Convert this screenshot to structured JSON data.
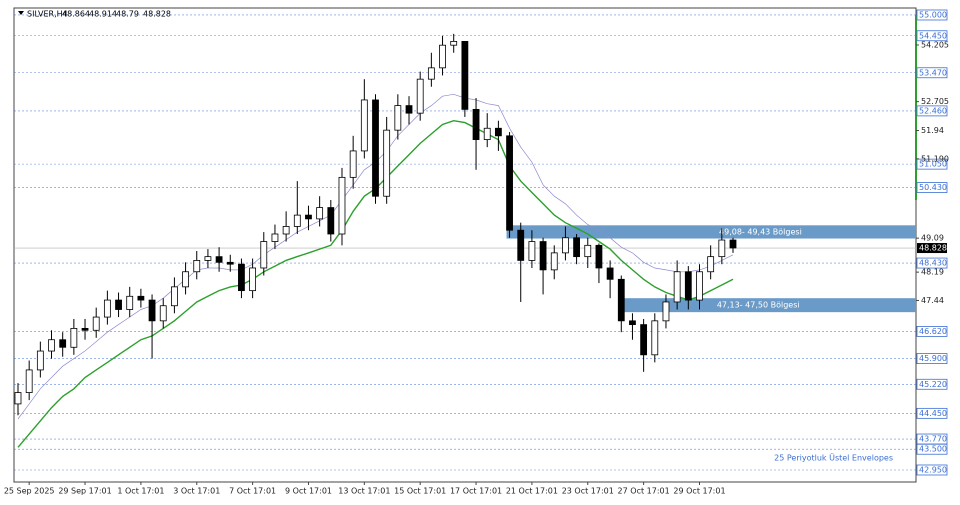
{
  "chart_data": {
    "type": "candlestick",
    "header": {
      "symbol": "SILVER,H4",
      "ohlc": [
        48.864,
        48.914,
        48.79,
        48.828
      ]
    },
    "annotation": "25 Periyotluk Üstel Envelopes",
    "last_price": 48.828,
    "categories": [
      null,
      "25 Sep 2025",
      null,
      null,
      null,
      null,
      "29 Sep 17:01",
      null,
      null,
      null,
      null,
      "1 Oct 17:01",
      null,
      null,
      null,
      null,
      "3 Oct 17:01",
      null,
      null,
      null,
      null,
      "7 Oct 17:01",
      null,
      null,
      null,
      null,
      "9 Oct 17:01",
      null,
      null,
      null,
      null,
      "13 Oct 17:01",
      null,
      null,
      null,
      null,
      "15 Oct 17:01",
      null,
      null,
      null,
      null,
      "17 Oct 17:01",
      null,
      null,
      null,
      null,
      "21 Oct 17:01",
      null,
      null,
      null,
      null,
      "23 Oct 17:01",
      null,
      null,
      null,
      null,
      "27 Oct 17:01",
      null,
      null,
      null,
      null,
      "29 Oct 17:01",
      null,
      null,
      null
    ],
    "open": [
      44.7,
      45.0,
      45.6,
      46.1,
      46.4,
      46.2,
      46.7,
      46.65,
      47.0,
      47.45,
      47.2,
      47.55,
      47.45,
      46.9,
      47.3,
      47.8,
      48.2,
      48.5,
      48.6,
      48.45,
      48.4,
      47.7,
      48.3,
      49.0,
      49.2,
      49.4,
      49.7,
      49.6,
      49.9,
      49.2,
      50.7,
      51.4,
      52.75,
      50.2,
      51.95,
      52.6,
      52.4,
      53.3,
      53.6,
      54.2,
      54.3,
      52.5,
      51.7,
      52.0,
      51.8,
      49.3,
      48.5,
      49.0,
      48.25,
      48.7,
      49.1,
      48.6,
      48.9,
      48.3,
      48.0,
      46.9,
      46.8,
      46.0,
      46.9,
      47.4,
      48.2,
      47.45,
      48.2,
      48.6,
      49.04
    ],
    "high": [
      45.25,
      45.85,
      46.35,
      46.65,
      46.6,
      46.95,
      46.95,
      47.25,
      47.7,
      47.65,
      47.8,
      47.75,
      47.6,
      47.5,
      48.05,
      48.45,
      48.75,
      48.8,
      48.85,
      48.65,
      48.55,
      48.55,
      49.25,
      49.45,
      49.8,
      50.6,
      49.95,
      50.2,
      50.1,
      50.95,
      51.8,
      53.3,
      52.9,
      52.3,
      52.9,
      52.85,
      53.5,
      54.0,
      54.45,
      54.5,
      54.3,
      52.8,
      52.4,
      52.2,
      51.9,
      49.5,
      49.3,
      49.1,
      48.9,
      49.4,
      49.2,
      49.1,
      48.95,
      48.5,
      48.1,
      47.1,
      46.95,
      47.1,
      47.6,
      48.5,
      48.35,
      48.4,
      48.9,
      49.35,
      49.1
    ],
    "low": [
      44.4,
      44.8,
      45.4,
      45.9,
      45.95,
      46.0,
      46.4,
      46.45,
      46.8,
      47.0,
      47.0,
      47.25,
      45.9,
      46.7,
      47.1,
      47.6,
      48.0,
      48.3,
      48.2,
      48.2,
      47.5,
      47.5,
      48.1,
      48.8,
      49.0,
      49.2,
      49.3,
      49.4,
      49.0,
      48.9,
      50.4,
      51.2,
      50.0,
      50.0,
      51.7,
      52.1,
      52.2,
      53.1,
      53.4,
      54.0,
      52.3,
      50.9,
      51.5,
      51.4,
      49.1,
      47.4,
      48.3,
      47.6,
      48.0,
      48.5,
      48.4,
      48.3,
      47.9,
      47.5,
      46.6,
      46.4,
      45.55,
      45.8,
      46.7,
      47.2,
      47.2,
      47.2,
      48.0,
      48.4,
      48.7
    ],
    "close": [
      45.0,
      45.6,
      46.1,
      46.4,
      46.2,
      46.7,
      46.65,
      47.0,
      47.45,
      47.2,
      47.55,
      47.45,
      46.9,
      47.3,
      47.8,
      48.2,
      48.5,
      48.6,
      48.45,
      48.4,
      47.7,
      48.3,
      49.0,
      49.2,
      49.4,
      49.7,
      49.6,
      49.9,
      49.2,
      50.7,
      51.4,
      52.75,
      50.2,
      51.95,
      52.6,
      52.4,
      53.3,
      53.6,
      54.2,
      54.3,
      52.5,
      51.7,
      52.0,
      51.8,
      49.3,
      48.5,
      49.0,
      48.25,
      48.7,
      49.1,
      48.6,
      48.9,
      48.3,
      48.0,
      46.9,
      46.8,
      46.0,
      46.9,
      47.4,
      48.2,
      47.45,
      48.2,
      48.6,
      49.04,
      48.83
    ],
    "lines": [
      {
        "color": "#2ca02c",
        "values": [
          43.55,
          43.9,
          44.25,
          44.6,
          44.9,
          45.1,
          45.4,
          45.6,
          45.8,
          46.0,
          46.2,
          46.4,
          46.5,
          46.7,
          46.9,
          47.15,
          47.4,
          47.55,
          47.7,
          47.8,
          47.85,
          48.0,
          48.2,
          48.35,
          48.5,
          48.6,
          48.7,
          48.8,
          48.9,
          49.3,
          49.8,
          50.2,
          50.4,
          50.7,
          51.0,
          51.3,
          51.6,
          51.85,
          52.1,
          52.2,
          52.15,
          52.0,
          51.85,
          51.7,
          51.0,
          50.6,
          50.3,
          50.0,
          49.7,
          49.5,
          49.35,
          49.2,
          49.0,
          48.8,
          48.5,
          48.25,
          48.0,
          47.8,
          47.65,
          47.55,
          47.45,
          47.55,
          47.7,
          47.85,
          48.0
        ]
      },
      {
        "color": "#8c8cd0",
        "values": [
          44.3,
          44.7,
          45.1,
          45.4,
          45.7,
          45.9,
          46.1,
          46.35,
          46.6,
          46.8,
          47.0,
          47.2,
          47.3,
          47.5,
          47.75,
          48.0,
          48.25,
          48.3,
          48.3,
          48.25,
          48.25,
          48.4,
          48.65,
          48.85,
          49.05,
          49.25,
          49.4,
          49.55,
          49.7,
          50.1,
          50.5,
          50.9,
          51.1,
          51.4,
          51.8,
          52.1,
          52.4,
          52.6,
          52.85,
          52.9,
          52.8,
          52.75,
          52.65,
          52.6,
          52.0,
          51.5,
          51.1,
          50.5,
          50.2,
          50.0,
          49.7,
          49.45,
          49.3,
          49.1,
          48.85,
          48.7,
          48.45,
          48.3,
          48.25,
          48.2,
          48.2,
          48.25,
          48.35,
          48.5,
          48.65
        ]
      }
    ],
    "zones": [
      {
        "label": "49,08- 49,43 Bölgesi",
        "low": 49.08,
        "high": 49.43,
        "color": "#6a9bc8"
      },
      {
        "label": "47,13- 47,50 Bölgesi",
        "low": 47.13,
        "high": 47.5,
        "color": "#6a9bc8"
      }
    ],
    "ylim": [
      42.632,
      55.185
    ],
    "yticks": [
      54.205,
      52.705,
      51.94,
      {
        "value": 51.19,
        "label": "51.190"
      },
      49.09,
      48.19,
      47.44
    ],
    "levels": [
      {
        "value": 55,
        "label": "55.000"
      },
      {
        "value": 54.45,
        "label": "54.450"
      },
      {
        "value": 53.47,
        "label": "53.470"
      },
      {
        "value": 52.46,
        "label": "52.460"
      },
      {
        "value": 51.05,
        "label": "51.050"
      },
      {
        "value": 50.43,
        "label": "50.430"
      },
      {
        "value": 48.43,
        "label": "48.430"
      },
      {
        "value": 46.62,
        "label": "46.620"
      },
      {
        "value": 45.9,
        "label": "45.900"
      },
      {
        "value": 45.22,
        "label": "45.220"
      },
      {
        "value": 44.45,
        "label": "44.450"
      },
      {
        "value": 43.77,
        "label": "43.770"
      },
      {
        "value": 43.5,
        "label": "43.500"
      },
      {
        "value": 42.95,
        "label": "42.950"
      }
    ],
    "level_color": "#3b6fd4",
    "bull_color": "#ffffff",
    "bear_color": "#000000"
  }
}
